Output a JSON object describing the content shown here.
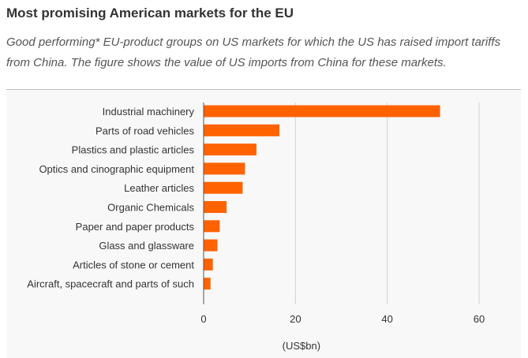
{
  "title": "Most promising American markets for the EU",
  "subtitle": "Good performing* EU-product groups on US markets for which the US has raised import tariffs from China. The figure shows the value of US imports from China for these markets.",
  "chart_data": {
    "type": "bar",
    "orientation": "horizontal",
    "categories": [
      "Industrial machinery",
      "Parts of road vehicles",
      "Plastics and plastic articles",
      "Optics and cinographic equipment",
      "Leather articles",
      "Organic Chemicals",
      "Paper and paper products",
      "Glass and glassware",
      "Articles of stone or cement",
      "Aircraft, spacecraft and parts of such"
    ],
    "values": [
      51.5,
      16.5,
      11.5,
      9,
      8.5,
      5,
      3.5,
      3,
      2,
      1.5
    ],
    "xlabel": "(US$bn)",
    "ylabel": "",
    "xlim": [
      0,
      60
    ],
    "xticks": [
      0,
      20,
      40,
      60
    ],
    "grid": "vertical",
    "bar_color": "#ff6200",
    "grid_color": "#d0d0d0"
  }
}
